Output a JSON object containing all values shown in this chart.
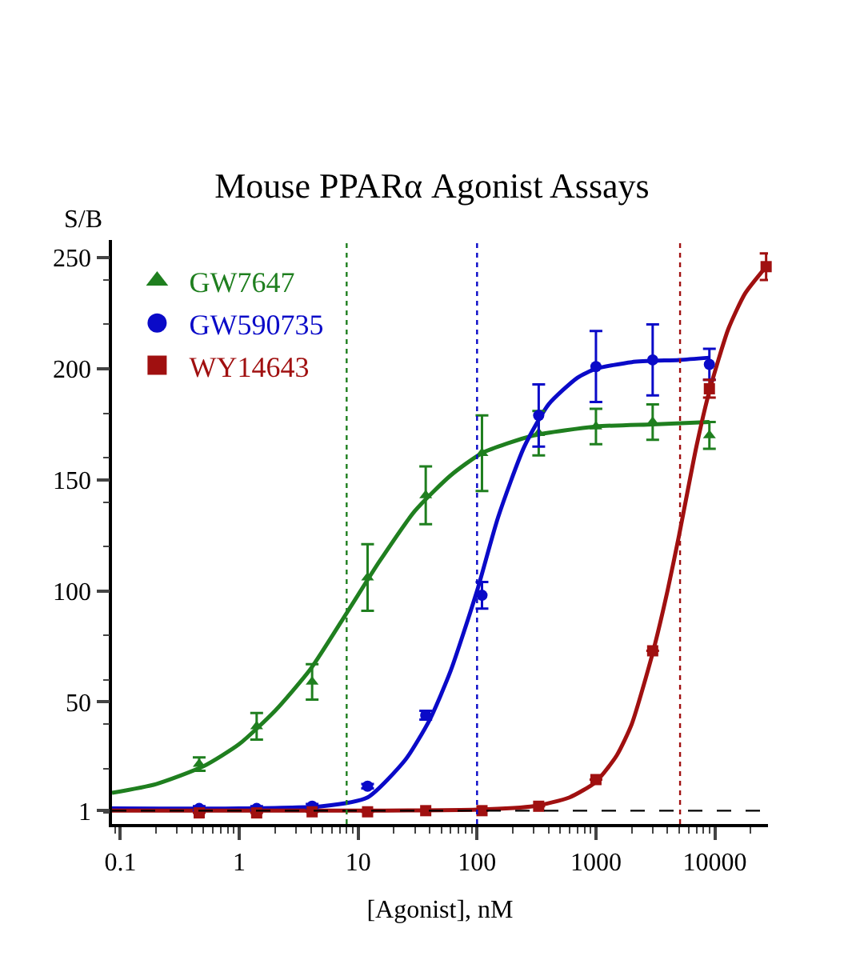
{
  "chart_data": {
    "type": "scatter",
    "title": "Mouse PPARα Agonist Assays",
    "xlabel": "[Agonist], nM",
    "ylabel": "S/B",
    "log": "x",
    "xlim": [
      0.085,
      28000
    ],
    "xticks": [
      0.1,
      1,
      10,
      100,
      1000,
      10000
    ],
    "ylim": [
      -5,
      258
    ],
    "yticks": [
      1,
      50,
      100,
      150,
      200,
      250
    ],
    "grid": false,
    "legend": "top left",
    "series": [
      {
        "name": "GW7647",
        "marker": "triangle",
        "color": "#1f7f1f",
        "x": [
          0.46,
          1.4,
          4.1,
          12,
          37,
          110,
          330,
          1000,
          3000,
          9000
        ],
        "values": [
          22,
          39,
          59,
          106,
          143,
          162,
          171,
          174,
          176,
          170
        ],
        "errors": [
          3,
          6,
          8,
          15,
          13,
          17,
          10,
          8,
          8,
          6
        ]
      },
      {
        "name": "GW590735",
        "marker": "circle",
        "color": "#0a0ac8",
        "x": [
          0.46,
          1.4,
          4.1,
          12,
          37,
          110,
          330,
          1000,
          3000,
          9000
        ],
        "values": [
          2,
          2,
          3,
          12,
          44,
          98,
          179,
          201,
          204,
          202
        ],
        "errors": [
          1,
          1,
          1,
          1,
          2,
          6,
          14,
          16,
          16,
          7
        ]
      },
      {
        "name": "WY14643",
        "marker": "square",
        "color": "#a01010",
        "x": [
          0.46,
          1.4,
          4.1,
          12,
          37,
          110,
          330,
          1000,
          3000,
          9000,
          27000
        ],
        "values": [
          0,
          0,
          0.5,
          0.5,
          1,
          1,
          3,
          15,
          73,
          191,
          246
        ],
        "errors": [
          null,
          null,
          null,
          null,
          null,
          null,
          null,
          null,
          null,
          4,
          6
        ]
      },
      {
        "type": "line",
        "marker": "none",
        "color": "#1f7f1f",
        "x": [
          0.085,
          0.2,
          0.5,
          1,
          2,
          4,
          8,
          15,
          30,
          60,
          110,
          300,
          1000,
          3000,
          9000
        ],
        "values": [
          9,
          13,
          21,
          31,
          46,
          65,
          90,
          113,
          136,
          152,
          162,
          170,
          174,
          175,
          176
        ]
      },
      {
        "type": "line",
        "marker": "none",
        "color": "#0a0ac8",
        "x": [
          0.085,
          1,
          5,
          12,
          25,
          40,
          60,
          100,
          150,
          250,
          400,
          700,
          1000,
          2000,
          5000,
          9000
        ],
        "values": [
          2,
          2,
          3,
          7,
          24,
          42,
          64,
          100,
          133,
          165,
          184,
          196,
          200,
          203,
          204,
          205
        ]
      },
      {
        "type": "line",
        "marker": "none",
        "color": "#a01010",
        "x": [
          0.085,
          10,
          100,
          300,
          600,
          1000,
          1500,
          2000,
          3000,
          4000,
          5000,
          7000,
          9000,
          13000,
          18000,
          27000
        ],
        "values": [
          1,
          1,
          1.5,
          3,
          7,
          14,
          26,
          40,
          72,
          100,
          125,
          165,
          190,
          218,
          234,
          246
        ]
      }
    ],
    "ref_lines": [
      {
        "axis": "y",
        "value": 1,
        "color": "#000000",
        "line_style": "dashed"
      },
      {
        "axis": "x",
        "value": 8,
        "color": "#1f7f1f",
        "line_style": "dotted"
      },
      {
        "axis": "x",
        "value": 100,
        "color": "#0a0ac8",
        "line_style": "dotted"
      },
      {
        "axis": "x",
        "value": 5100,
        "color": "#a01010",
        "line_style": "dotted"
      }
    ]
  }
}
